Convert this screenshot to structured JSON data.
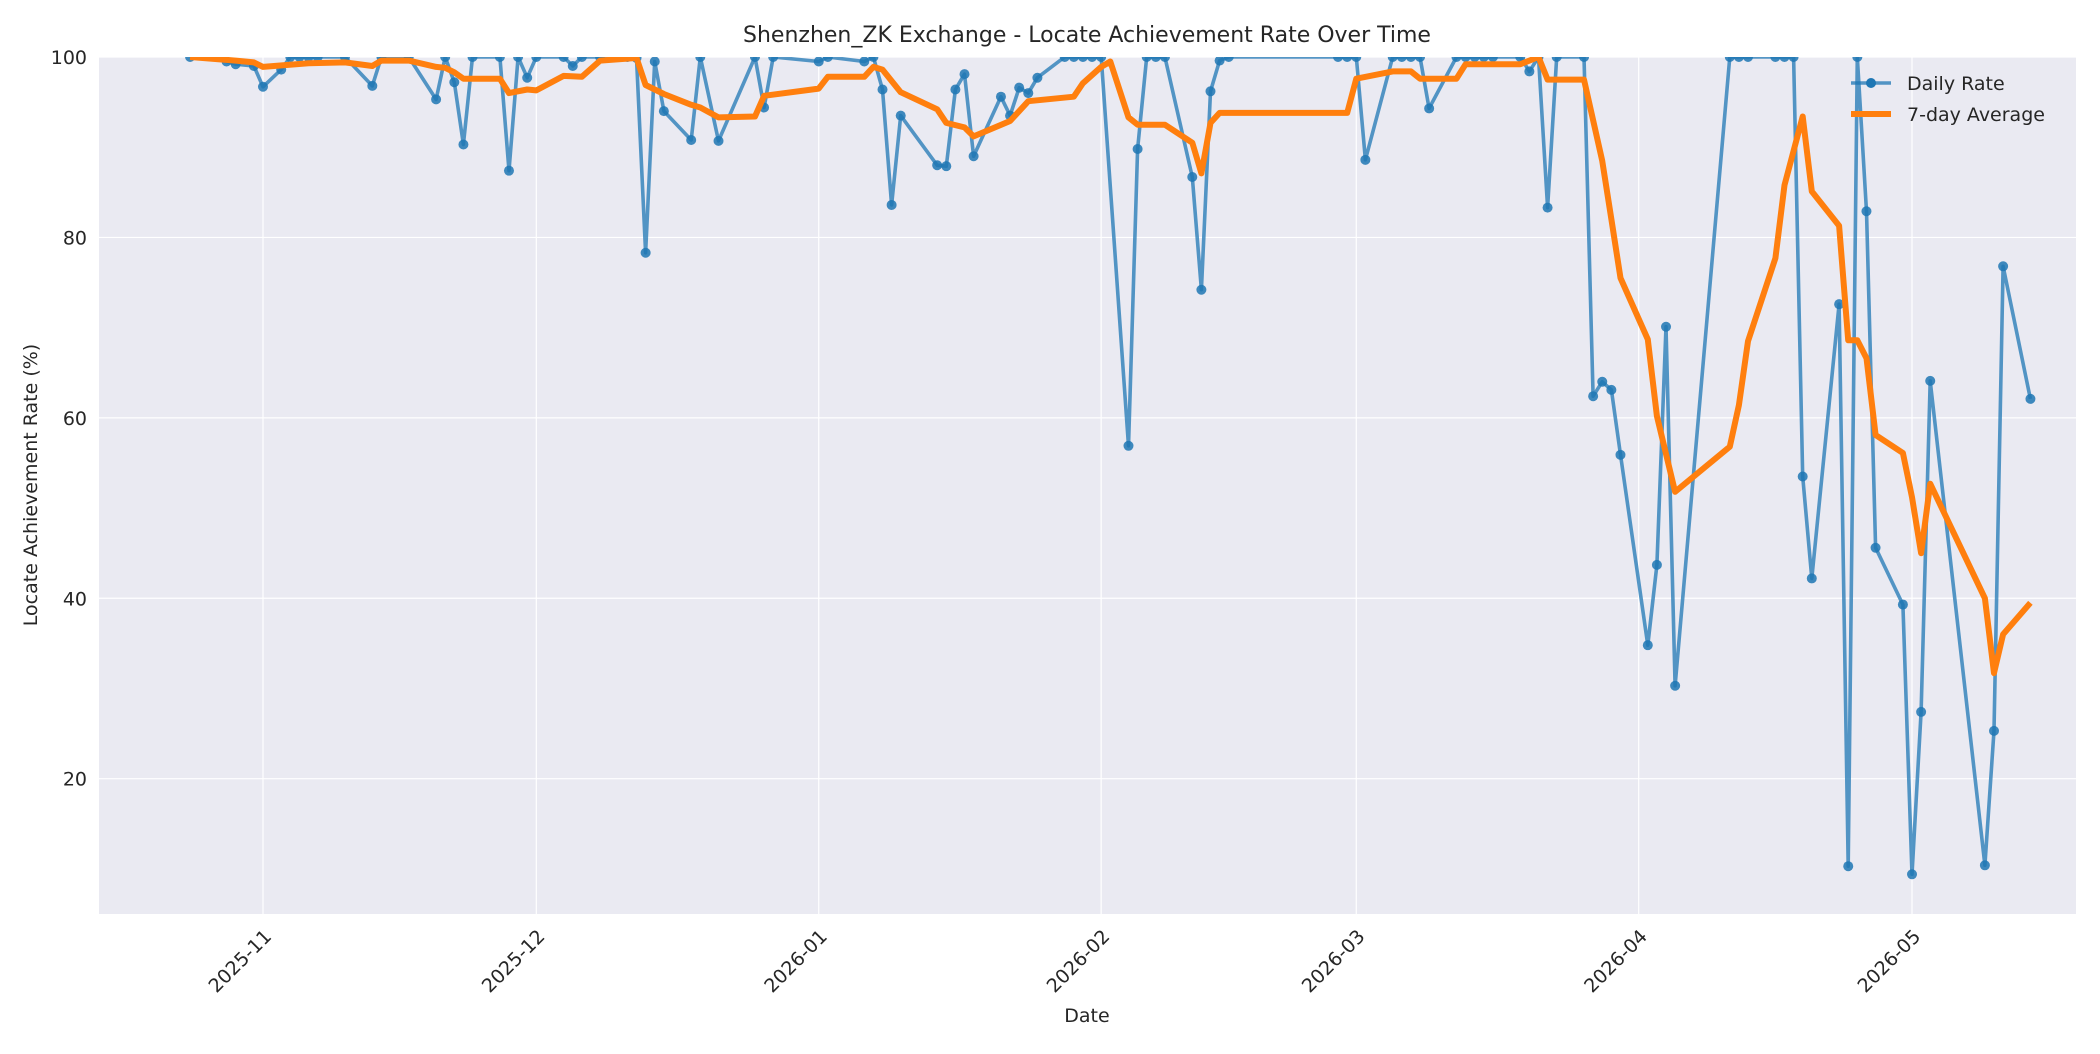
{
  "chart_data": {
    "type": "line",
    "title": "Shenzhen_ZK Exchange - Locate Achievement Rate Over Time",
    "xlabel": "Date",
    "ylabel": "Locate Achievement Rate (%)",
    "xlim": [
      "2025-10-14",
      "2026-05-19"
    ],
    "ylim": [
      5,
      100
    ],
    "grid": true,
    "legend_position": "top-right",
    "x_ticks": [
      "2025-11-01",
      "2025-12-01",
      "2026-01-01",
      "2026-02-01",
      "2026-03-01",
      "2026-04-01",
      "2026-05-01"
    ],
    "x_tick_labels": [
      "2025-11",
      "2025-12",
      "2026-01",
      "2026-02",
      "2026-03",
      "2026-04",
      "2026-05"
    ],
    "y_ticks": [
      20,
      40,
      60,
      80,
      100
    ],
    "colors": {
      "plot_background": "#EAEAF2",
      "grid": "#FFFFFF",
      "daily": "#1F77B4",
      "average": "#FF7F0E"
    },
    "series": [
      {
        "name": "Daily Rate",
        "style": "line-markers",
        "points": [
          [
            "2025-10-24",
            100
          ],
          [
            "2025-10-27",
            100
          ],
          [
            "2025-10-28",
            99.5
          ],
          [
            "2025-10-29",
            99.2
          ],
          [
            "2025-10-31",
            99
          ],
          [
            "2025-11-01",
            96.7
          ],
          [
            "2025-11-03",
            98.6
          ],
          [
            "2025-11-04",
            100
          ],
          [
            "2025-11-05",
            100
          ],
          [
            "2025-11-06",
            100
          ],
          [
            "2025-11-07",
            100
          ],
          [
            "2025-11-10",
            100
          ],
          [
            "2025-11-13",
            96.8
          ],
          [
            "2025-11-14",
            100
          ],
          [
            "2025-11-17",
            100
          ],
          [
            "2025-11-20",
            95.3
          ],
          [
            "2025-11-21",
            100
          ],
          [
            "2025-11-22",
            97.2
          ],
          [
            "2025-11-23",
            90.3
          ],
          [
            "2025-11-24",
            100
          ],
          [
            "2025-11-27",
            100
          ],
          [
            "2025-11-28",
            87.4
          ],
          [
            "2025-11-29",
            100
          ],
          [
            "2025-11-30",
            97.7
          ],
          [
            "2025-12-01",
            100
          ],
          [
            "2025-12-04",
            100
          ],
          [
            "2025-12-05",
            99
          ],
          [
            "2025-12-06",
            100
          ],
          [
            "2025-12-08",
            100
          ],
          [
            "2025-12-11",
            100
          ],
          [
            "2025-12-12",
            99.9
          ],
          [
            "2025-12-13",
            78.3
          ],
          [
            "2025-12-14",
            99.5
          ],
          [
            "2025-12-15",
            94
          ],
          [
            "2025-12-18",
            90.8
          ],
          [
            "2025-12-19",
            100
          ],
          [
            "2025-12-21",
            90.7
          ],
          [
            "2025-12-25",
            100
          ],
          [
            "2025-12-26",
            94.4
          ],
          [
            "2025-12-27",
            100
          ],
          [
            "2026-01-01",
            99.5
          ],
          [
            "2026-01-02",
            100
          ],
          [
            "2026-01-06",
            99.5
          ],
          [
            "2026-01-07",
            100
          ],
          [
            "2026-01-08",
            96.4
          ],
          [
            "2026-01-09",
            83.6
          ],
          [
            "2026-01-10",
            93.5
          ],
          [
            "2026-01-14",
            88
          ],
          [
            "2026-01-15",
            87.9
          ],
          [
            "2026-01-16",
            96.4
          ],
          [
            "2026-01-17",
            98.1
          ],
          [
            "2026-01-18",
            89
          ],
          [
            "2026-01-21",
            95.6
          ],
          [
            "2026-01-22",
            93.5
          ],
          [
            "2026-01-23",
            96.6
          ],
          [
            "2026-01-24",
            96
          ],
          [
            "2026-01-25",
            97.7
          ],
          [
            "2026-01-28",
            100
          ],
          [
            "2026-01-29",
            100
          ],
          [
            "2026-01-30",
            100
          ],
          [
            "2026-01-31",
            100
          ],
          [
            "2026-02-01",
            100
          ],
          [
            "2026-02-04",
            56.9
          ],
          [
            "2026-02-05",
            89.8
          ],
          [
            "2026-02-06",
            100
          ],
          [
            "2026-02-07",
            100
          ],
          [
            "2026-02-08",
            100
          ],
          [
            "2026-02-11",
            86.7
          ],
          [
            "2026-02-12",
            74.2
          ],
          [
            "2026-02-13",
            96.2
          ],
          [
            "2026-02-14",
            99.6
          ],
          [
            "2026-02-15",
            100
          ],
          [
            "2026-02-27",
            100
          ],
          [
            "2026-02-28",
            100
          ],
          [
            "2026-03-01",
            100
          ],
          [
            "2026-03-02",
            88.6
          ],
          [
            "2026-03-05",
            100
          ],
          [
            "2026-03-06",
            100
          ],
          [
            "2026-03-07",
            100
          ],
          [
            "2026-03-08",
            100
          ],
          [
            "2026-03-09",
            94.3
          ],
          [
            "2026-03-12",
            100
          ],
          [
            "2026-03-13",
            100
          ],
          [
            "2026-03-14",
            100
          ],
          [
            "2026-03-15",
            100
          ],
          [
            "2026-03-16",
            100
          ],
          [
            "2026-03-19",
            100
          ],
          [
            "2026-03-20",
            98.4
          ],
          [
            "2026-03-21",
            100
          ],
          [
            "2026-03-22",
            83.3
          ],
          [
            "2026-03-23",
            100
          ],
          [
            "2026-03-26",
            100
          ],
          [
            "2026-03-27",
            62.4
          ],
          [
            "2026-03-28",
            64
          ],
          [
            "2026-03-29",
            63.1
          ],
          [
            "2026-03-30",
            55.9
          ],
          [
            "2026-04-02",
            34.8
          ],
          [
            "2026-04-03",
            43.7
          ],
          [
            "2026-04-04",
            70.1
          ],
          [
            "2026-04-05",
            30.3
          ],
          [
            "2026-04-11",
            100
          ],
          [
            "2026-04-12",
            100
          ],
          [
            "2026-04-13",
            100
          ],
          [
            "2026-04-16",
            100
          ],
          [
            "2026-04-17",
            100
          ],
          [
            "2026-04-18",
            100
          ],
          [
            "2026-04-19",
            53.5
          ],
          [
            "2026-04-20",
            42.2
          ],
          [
            "2026-04-23",
            72.6
          ],
          [
            "2026-04-24",
            10.3
          ],
          [
            "2026-04-25",
            100
          ],
          [
            "2026-04-26",
            82.9
          ],
          [
            "2026-04-27",
            45.6
          ],
          [
            "2026-04-30",
            39.3
          ],
          [
            "2026-05-01",
            9.4
          ],
          [
            "2026-05-02",
            27.4
          ],
          [
            "2026-05-03",
            64.1
          ],
          [
            "2026-05-09",
            10.4
          ],
          [
            "2026-05-10",
            25.3
          ],
          [
            "2026-05-11",
            76.8
          ],
          [
            "2026-05-14",
            62.1
          ]
        ]
      },
      {
        "name": "7-day Average",
        "style": "line",
        "points": [
          [
            "2025-10-24",
            100
          ],
          [
            "2025-10-29",
            99.6
          ],
          [
            "2025-10-31",
            99.4
          ],
          [
            "2025-11-01",
            98.9
          ],
          [
            "2025-11-06",
            99.3
          ],
          [
            "2025-11-10",
            99.4
          ],
          [
            "2025-11-13",
            99
          ],
          [
            "2025-11-14",
            99.6
          ],
          [
            "2025-11-17",
            99.6
          ],
          [
            "2025-11-20",
            98.9
          ],
          [
            "2025-11-21",
            98.8
          ],
          [
            "2025-11-22",
            98.3
          ],
          [
            "2025-11-23",
            97.6
          ],
          [
            "2025-11-27",
            97.6
          ],
          [
            "2025-11-28",
            96
          ],
          [
            "2025-11-30",
            96.4
          ],
          [
            "2025-12-01",
            96.3
          ],
          [
            "2025-12-04",
            97.9
          ],
          [
            "2025-12-06",
            97.8
          ],
          [
            "2025-12-08",
            99.6
          ],
          [
            "2025-12-12",
            99.9
          ],
          [
            "2025-12-13",
            96.9
          ],
          [
            "2025-12-15",
            95.9
          ],
          [
            "2025-12-18",
            94.7
          ],
          [
            "2025-12-19",
            94.4
          ],
          [
            "2025-12-21",
            93.3
          ],
          [
            "2025-12-25",
            93.4
          ],
          [
            "2025-12-26",
            95.7
          ],
          [
            "2026-01-01",
            96.5
          ],
          [
            "2026-01-02",
            97.8
          ],
          [
            "2026-01-06",
            97.8
          ],
          [
            "2026-01-07",
            98.9
          ],
          [
            "2026-01-08",
            98.6
          ],
          [
            "2026-01-10",
            96.1
          ],
          [
            "2026-01-14",
            94.2
          ],
          [
            "2026-01-15",
            92.7
          ],
          [
            "2026-01-17",
            92.2
          ],
          [
            "2026-01-18",
            91.2
          ],
          [
            "2026-01-22",
            92.9
          ],
          [
            "2026-01-24",
            95.1
          ],
          [
            "2026-01-29",
            95.6
          ],
          [
            "2026-01-30",
            97.1
          ],
          [
            "2026-02-01",
            98.9
          ],
          [
            "2026-02-02",
            99.5
          ],
          [
            "2026-02-04",
            93.3
          ],
          [
            "2026-02-05",
            92.5
          ],
          [
            "2026-02-08",
            92.5
          ],
          [
            "2026-02-11",
            90.5
          ],
          [
            "2026-02-12",
            87.1
          ],
          [
            "2026-02-13",
            92.7
          ],
          [
            "2026-02-14",
            93.8
          ],
          [
            "2026-02-28",
            93.8
          ],
          [
            "2026-03-01",
            97.6
          ],
          [
            "2026-03-05",
            98.4
          ],
          [
            "2026-03-07",
            98.4
          ],
          [
            "2026-03-08",
            97.6
          ],
          [
            "2026-03-12",
            97.6
          ],
          [
            "2026-03-13",
            99.2
          ],
          [
            "2026-03-19",
            99.2
          ],
          [
            "2026-03-21",
            100
          ],
          [
            "2026-03-22",
            97.5
          ],
          [
            "2026-03-26",
            97.5
          ],
          [
            "2026-03-28",
            88.5
          ],
          [
            "2026-03-29",
            82
          ],
          [
            "2026-03-30",
            75.5
          ],
          [
            "2026-04-02",
            68.7
          ],
          [
            "2026-04-03",
            60.2
          ],
          [
            "2026-04-04",
            56
          ],
          [
            "2026-04-05",
            51.8
          ],
          [
            "2026-04-11",
            56.8
          ],
          [
            "2026-04-12",
            61.4
          ],
          [
            "2026-04-13",
            68.5
          ],
          [
            "2026-04-16",
            77.7
          ],
          [
            "2026-04-17",
            85.8
          ],
          [
            "2026-04-19",
            93.4
          ],
          [
            "2026-04-20",
            85.1
          ],
          [
            "2026-04-23",
            81.3
          ],
          [
            "2026-04-24",
            68.6
          ],
          [
            "2026-04-25",
            68.6
          ],
          [
            "2026-04-26",
            66.6
          ],
          [
            "2026-04-27",
            58.1
          ],
          [
            "2026-04-30",
            56.1
          ],
          [
            "2026-05-01",
            51.2
          ],
          [
            "2026-05-02",
            45
          ],
          [
            "2026-05-03",
            52.7
          ],
          [
            "2026-05-09",
            40
          ],
          [
            "2026-05-10",
            31.7
          ],
          [
            "2026-05-11",
            36
          ],
          [
            "2026-05-14",
            39.5
          ]
        ]
      }
    ]
  }
}
